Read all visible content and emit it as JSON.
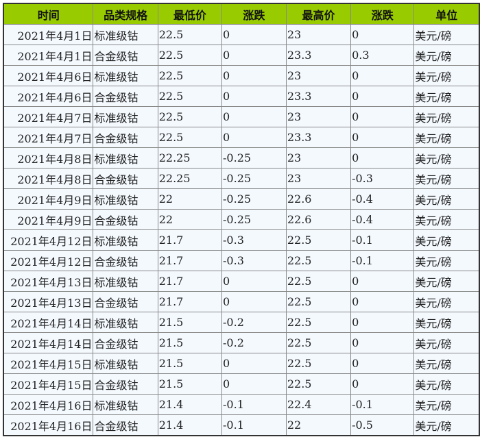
{
  "table": {
    "headers": [
      "时间",
      "品类规格",
      "最低价",
      "涨跌",
      "最高价",
      "涨跌",
      "单位"
    ],
    "rows": [
      [
        "2021年4月1日",
        "标准级钴",
        "22.5",
        "0",
        "23",
        "0",
        "美元/磅"
      ],
      [
        "2021年4月1日",
        "合金级钴",
        "22.5",
        "0",
        "23.3",
        "0.3",
        "美元/磅"
      ],
      [
        "2021年4月6日",
        "标准级钴",
        "22.5",
        "0",
        "23",
        "0",
        "美元/磅"
      ],
      [
        "2021年4月6日",
        "合金级钴",
        "22.5",
        "0",
        "23.3",
        "0",
        "美元/磅"
      ],
      [
        "2021年4月7日",
        "标准级钴",
        "22.5",
        "0",
        "23",
        "0",
        "美元/磅"
      ],
      [
        "2021年4月7日",
        "合金级钴",
        "22.5",
        "0",
        "23.3",
        "0",
        "美元/磅"
      ],
      [
        "2021年4月8日",
        "标准级钴",
        "22.25",
        "-0.25",
        "23",
        "0",
        "美元/磅"
      ],
      [
        "2021年4月8日",
        "合金级钴",
        "22.25",
        "-0.25",
        "23",
        "-0.3",
        "美元/磅"
      ],
      [
        "2021年4月9日",
        "标准级钴",
        "22",
        "-0.25",
        "22.6",
        "-0.4",
        "美元/磅"
      ],
      [
        "2021年4月9日",
        "合金级钴",
        "22",
        "-0.25",
        "22.6",
        "-0.4",
        "美元/磅"
      ],
      [
        "2021年4月12日",
        "标准级钴",
        "21.7",
        "-0.3",
        "22.5",
        "-0.1",
        "美元/磅"
      ],
      [
        "2021年4月12日",
        "合金级钴",
        "21.7",
        "-0.3",
        "22.5",
        "-0.1",
        "美元/磅"
      ],
      [
        "2021年4月13日",
        "标准级钴",
        "21.7",
        "0",
        "22.5",
        "0",
        "美元/磅"
      ],
      [
        "2021年4月13日",
        "合金级钴",
        "21.7",
        "0",
        "22.5",
        "0",
        "美元/磅"
      ],
      [
        "2021年4月14日",
        "标准级钴",
        "21.5",
        "-0.2",
        "22.5",
        "0",
        "美元/磅"
      ],
      [
        "2021年4月14日",
        "合金级钴",
        "21.5",
        "-0.2",
        "22.5",
        "0",
        "美元/磅"
      ],
      [
        "2021年4月15日",
        "标准级钴",
        "21.5",
        "0",
        "22.5",
        "0",
        "美元/磅"
      ],
      [
        "2021年4月15日",
        "合金级钴",
        "21.5",
        "0",
        "22.5",
        "0",
        "美元/磅"
      ],
      [
        "2021年4月16日",
        "标准级钴",
        "21.4",
        "-0.1",
        "22.4",
        "-0.1",
        "美元/磅"
      ],
      [
        "2021年4月16日",
        "合金级钴",
        "21.4",
        "-0.1",
        "22",
        "-0.5",
        "美元/磅"
      ]
    ]
  },
  "colors": {
    "header_bg": "#99cc00",
    "row_bg": "#f4f9fe"
  }
}
